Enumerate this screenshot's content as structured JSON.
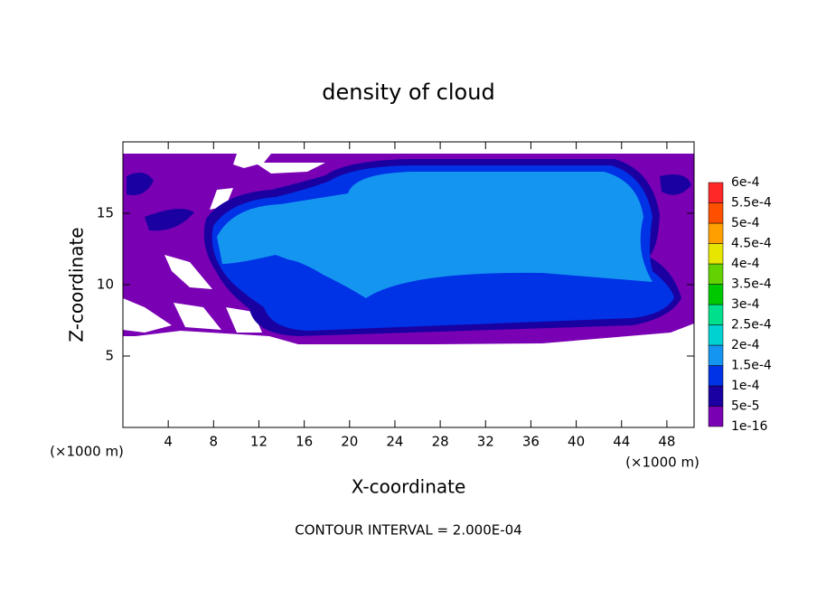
{
  "chart_data": {
    "type": "contour",
    "title": "density of cloud",
    "x_label": "X-coordinate",
    "y_label": "Z-coordinate",
    "x_unit_left": "(×1000 m)",
    "x_unit_right": "(×1000 m)",
    "footer": "CONTOUR INTERVAL = 2.000E-04",
    "xlim": [
      0,
      50.4
    ],
    "ylim": [
      0,
      20
    ],
    "xticks": [
      4,
      8,
      12,
      16,
      20,
      24,
      28,
      32,
      36,
      40,
      44,
      48
    ],
    "yticks": [
      5,
      10,
      15
    ],
    "colorbar": {
      "levels": [
        {
          "value": 1e-16,
          "label": "1e-16"
        },
        {
          "value": 5e-05,
          "label": "5e-5"
        },
        {
          "value": 0.0001,
          "label": "1e-4"
        },
        {
          "value": 0.00015,
          "label": "1.5e-4"
        },
        {
          "value": 0.0002,
          "label": "2e-4"
        },
        {
          "value": 0.00025,
          "label": "2.5e-4"
        },
        {
          "value": 0.0003,
          "label": "3e-4"
        },
        {
          "value": 0.00035,
          "label": "3.5e-4"
        },
        {
          "value": 0.0004,
          "label": "4e-4"
        },
        {
          "value": 0.00045,
          "label": "4.5e-4"
        },
        {
          "value": 0.0005,
          "label": "5e-4"
        },
        {
          "value": 0.00055,
          "label": "5.5e-4"
        },
        {
          "value": 0.0006,
          "label": "6e-4"
        }
      ],
      "colors": [
        "#7a00b4",
        "#1a00a0",
        "#0032e6",
        "#1496f0",
        "#00d2d2",
        "#00e08c",
        "#00c800",
        "#64d200",
        "#e6e600",
        "#ffa000",
        "#ff5000",
        "#ff2828",
        "#ff8c8c"
      ]
    }
  }
}
